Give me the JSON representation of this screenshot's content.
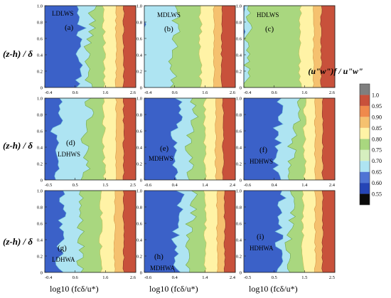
{
  "figure": {
    "y_axis_label": "(z-h) / δ",
    "x_axis_label": "log10 (fcδ/u*)",
    "colorbar": {
      "title": "(u\"w\")f / u\"w\"",
      "levels": [
        0.55,
        0.6,
        0.65,
        0.7,
        0.75,
        0.8,
        0.85,
        0.9,
        0.95,
        1.0
      ],
      "tick_labels": [
        "0.55",
        "0.60",
        "0.65",
        "0.70",
        "0.75",
        "0.80",
        "0.85",
        "0.90",
        "0.95",
        "1.0"
      ],
      "colors": [
        "#0b0b0b",
        "#2545b6",
        "#4f74d4",
        "#aee4f2",
        "#d6efbf",
        "#a9d77f",
        "#fff3a6",
        "#f5c16f",
        "#ef8a4c",
        "#c8513b",
        "#7f7f7f"
      ]
    }
  },
  "chart_data": {
    "type": "contour",
    "value_meaning": "(u\"w\")f / u\"w\" contour levels vs log10(fcδ/u*) and (z-h)/δ",
    "panels": [
      {
        "id": "a",
        "case": "LDLWS",
        "xlim": [
          -0.4,
          2.6
        ],
        "xticks": [
          "-0.4",
          "0.6",
          "1.6",
          "2.6"
        ],
        "ylim": [
          0,
          1
        ],
        "yticks": [
          "0",
          "0.2",
          "0.4",
          "0.6",
          "0.8",
          "1.0"
        ],
        "boundaries": [
          0.7,
          1.05,
          1.55,
          1.95,
          2.2
        ]
      },
      {
        "id": "b",
        "case": "MDLWS",
        "xlim": [
          -0.4,
          2.6
        ],
        "xticks": [
          "-0.4",
          "0.6",
          "1.6",
          "2.6"
        ],
        "ylim": [
          0,
          1
        ],
        "yticks": [
          "0",
          "0.2",
          "0.4",
          "0.6",
          "0.8",
          "1.0"
        ],
        "boundaries": [
          null,
          0.55,
          1.45,
          1.9,
          2.15
        ]
      },
      {
        "id": "c",
        "case": "HDLWS",
        "xlim": [
          -0.4,
          2.6
        ],
        "xticks": [
          "-0.4",
          "0.6",
          "1.6",
          "2.6"
        ],
        "ylim": [
          0,
          1
        ],
        "yticks": [
          "0",
          "0.2",
          "0.4",
          "0.6",
          "0.8",
          "1.0"
        ],
        "boundaries": [
          null,
          -0.35,
          1.45,
          1.9,
          2.15
        ]
      },
      {
        "id": "d",
        "case": "LDHWS",
        "xlim": [
          -0.5,
          2.5
        ],
        "xticks": [
          "-0.5",
          "0.5",
          "1.5",
          "2.5"
        ],
        "ylim": [
          0,
          1
        ],
        "yticks": [
          "0",
          "0.2",
          "0.4",
          "0.6",
          "0.8",
          "1.0"
        ],
        "boundaries": [
          -0.15,
          0.85,
          1.45,
          1.85,
          2.1
        ]
      },
      {
        "id": "e",
        "case": "MDHWS",
        "xlim": [
          -0.6,
          2.4
        ],
        "xticks": [
          "-0.6",
          "0.4",
          "1.4",
          "2.4"
        ],
        "ylim": [
          0,
          1
        ],
        "yticks": [
          "0",
          "0.2",
          "0.4",
          "0.6",
          "0.8",
          "1.0"
        ],
        "boundaries": [
          0.4,
          0.9,
          1.4,
          1.75,
          2.0
        ]
      },
      {
        "id": "f",
        "case": "HDHWS",
        "xlim": [
          -0.6,
          2.4
        ],
        "xticks": [
          "-0.6",
          "0.4",
          "1.4",
          "2.4"
        ],
        "ylim": [
          0,
          1
        ],
        "yticks": [
          "0",
          "0.2",
          "0.4",
          "0.6",
          "0.8",
          "1.0"
        ],
        "boundaries": [
          0.5,
          1.0,
          1.4,
          1.75,
          2.0
        ]
      },
      {
        "id": "g",
        "case": "LDHWA",
        "xlim": [
          -0.4,
          2.6
        ],
        "xticks": [
          "-0.4",
          "0.6",
          "1.6",
          "2.6"
        ],
        "ylim": [
          0,
          1
        ],
        "yticks": [
          "0",
          "0.2",
          "0.4",
          "0.6",
          "0.8",
          "1.0"
        ],
        "boundaries": [
          0.1,
          0.75,
          1.45,
          1.9,
          2.2
        ]
      },
      {
        "id": "h",
        "case": "MDHWA",
        "xlim": [
          -0.6,
          2.4
        ],
        "xticks": [
          "-0.6",
          "0.4",
          "1.4",
          "2.4"
        ],
        "ylim": [
          0,
          1
        ],
        "yticks": [
          "0",
          "0.2",
          "0.4",
          "0.6",
          "0.8",
          "1.0"
        ],
        "boundaries": [
          0.45,
          0.9,
          1.4,
          1.8,
          2.05
        ]
      },
      {
        "id": "i",
        "case": "HDHWA",
        "xlim": [
          -0.5,
          2.5
        ],
        "xticks": [
          "-0.5",
          "0.5",
          "1.5",
          "2.5"
        ],
        "ylim": [
          0,
          1
        ],
        "yticks": [
          "0",
          "0.2",
          "0.4",
          "0.6",
          "0.8",
          "1.0"
        ],
        "boundaries": [
          0.65,
          1.0,
          1.45,
          1.85,
          2.1
        ]
      }
    ],
    "grid": false,
    "legend": "right colorbar"
  }
}
